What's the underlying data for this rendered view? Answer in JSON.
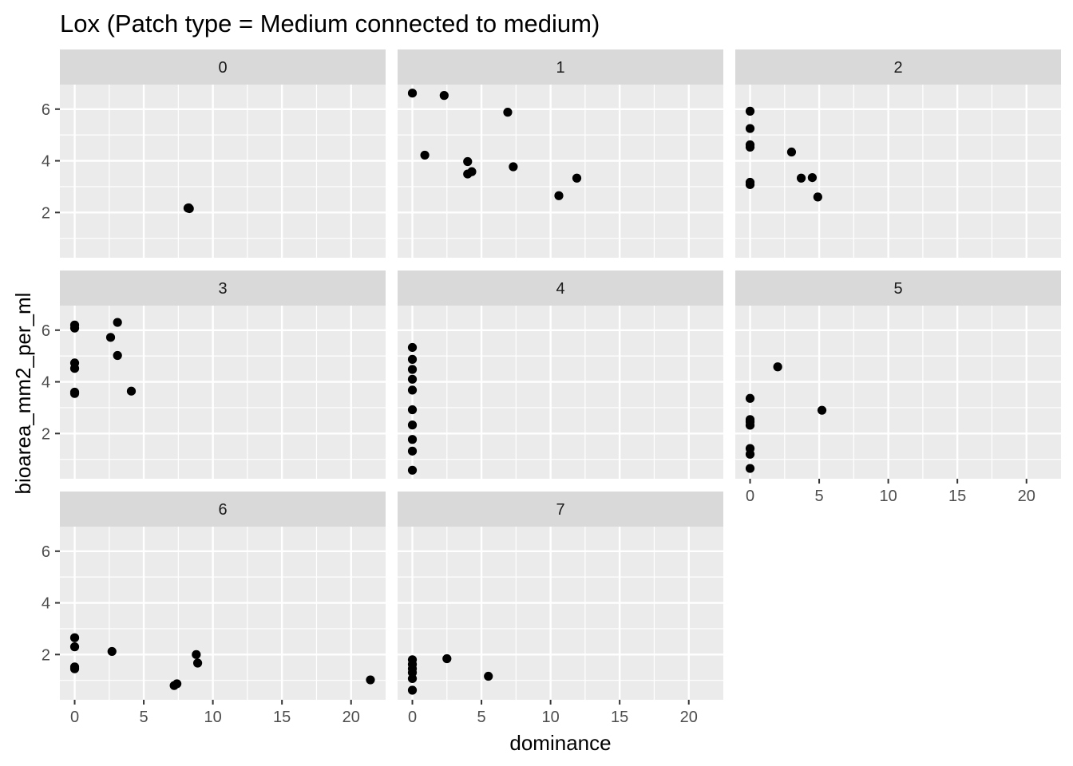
{
  "chart_data": {
    "type": "scatter",
    "title": "Lox (Patch type = Medium connected to medium)",
    "xlabel": "dominance",
    "ylabel": "bioarea_mm2_per_ml",
    "xlim": [
      -1.07,
      22.5
    ],
    "ylim": [
      0.25,
      6.95
    ],
    "x_ticks": [
      0,
      5,
      10,
      15,
      20
    ],
    "x_tick_labels": [
      "0",
      "5",
      "10",
      "15",
      "20"
    ],
    "y_ticks": [
      2,
      4,
      6
    ],
    "y_tick_labels": [
      "2",
      "4",
      "6"
    ],
    "grid": true,
    "facet_ncol": 3,
    "colors": {
      "panel_background": "#ebebeb",
      "grid": "#ffffff",
      "strip_background": "#d9d9d9",
      "point": "#000000"
    },
    "panels": [
      {
        "label": "0",
        "points": [
          [
            8.2,
            2.17
          ],
          [
            8.3,
            2.15
          ],
          [
            8.25,
            2.18
          ]
        ]
      },
      {
        "label": "1",
        "points": [
          [
            0,
            6.62
          ],
          [
            2.3,
            6.53
          ],
          [
            6.9,
            5.88
          ],
          [
            0.9,
            4.22
          ],
          [
            4.0,
            3.97
          ],
          [
            4.0,
            3.49
          ],
          [
            4.3,
            3.58
          ],
          [
            7.3,
            3.77
          ],
          [
            11.9,
            3.33
          ],
          [
            10.6,
            2.65
          ]
        ]
      },
      {
        "label": "2",
        "points": [
          [
            0,
            5.92
          ],
          [
            0,
            5.25
          ],
          [
            0,
            4.62
          ],
          [
            0,
            4.53
          ],
          [
            0,
            3.17
          ],
          [
            0,
            3.08
          ],
          [
            3.0,
            4.34
          ],
          [
            3.7,
            3.33
          ],
          [
            4.5,
            3.35
          ],
          [
            4.9,
            2.6
          ]
        ]
      },
      {
        "label": "3",
        "points": [
          [
            0,
            6.2
          ],
          [
            0,
            6.08
          ],
          [
            0,
            4.73
          ],
          [
            0,
            4.52
          ],
          [
            0,
            3.6
          ],
          [
            0,
            3.55
          ],
          [
            3.1,
            6.3
          ],
          [
            2.6,
            5.72
          ],
          [
            3.1,
            5.02
          ],
          [
            4.1,
            3.64
          ]
        ]
      },
      {
        "label": "4",
        "points": [
          [
            0,
            5.33
          ],
          [
            0,
            4.87
          ],
          [
            0,
            4.48
          ],
          [
            0,
            4.1
          ],
          [
            0,
            3.68
          ],
          [
            0,
            2.92
          ],
          [
            0,
            2.33
          ],
          [
            0,
            1.77
          ],
          [
            0,
            1.32
          ],
          [
            0,
            0.58
          ]
        ]
      },
      {
        "label": "5",
        "points": [
          [
            0,
            3.36
          ],
          [
            0,
            2.54
          ],
          [
            0,
            2.45
          ],
          [
            0,
            2.32
          ],
          [
            0,
            1.42
          ],
          [
            0,
            1.2
          ],
          [
            0,
            0.65
          ],
          [
            2.0,
            4.58
          ],
          [
            5.2,
            2.9
          ]
        ]
      },
      {
        "label": "6",
        "points": [
          [
            0,
            2.65
          ],
          [
            0,
            2.3
          ],
          [
            0,
            1.52
          ],
          [
            0,
            1.45
          ],
          [
            2.7,
            2.12
          ],
          [
            7.2,
            0.8
          ],
          [
            7.4,
            0.87
          ],
          [
            8.8,
            2.0
          ],
          [
            8.9,
            1.67
          ],
          [
            21.4,
            1.02
          ]
        ]
      },
      {
        "label": "7",
        "points": [
          [
            0,
            1.8
          ],
          [
            0,
            1.62
          ],
          [
            0,
            1.45
          ],
          [
            0,
            1.3
          ],
          [
            0,
            1.07
          ],
          [
            0,
            0.62
          ],
          [
            2.5,
            1.84
          ],
          [
            5.5,
            1.16
          ]
        ]
      }
    ]
  }
}
